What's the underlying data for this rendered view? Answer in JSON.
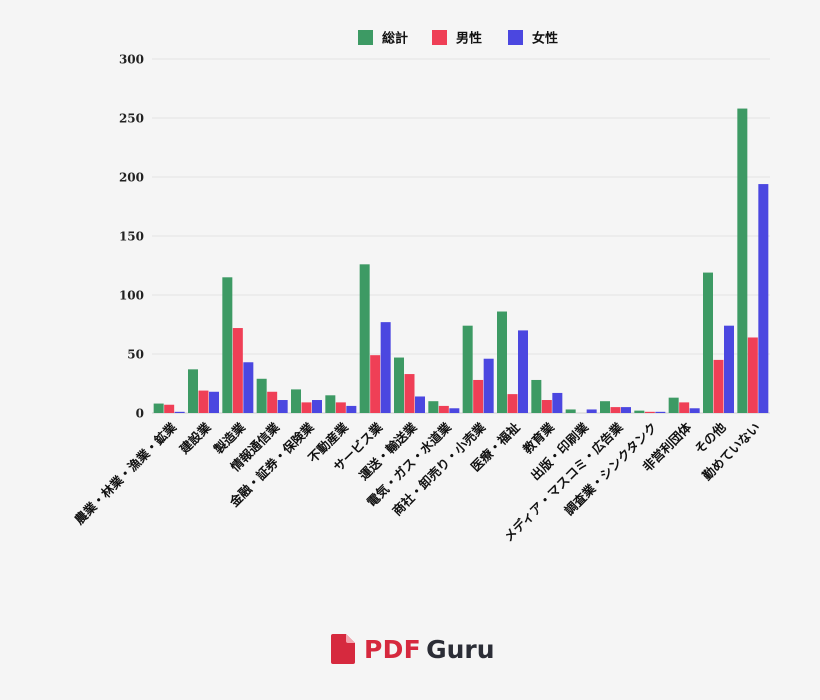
{
  "chart_data": {
    "type": "bar",
    "categories": [
      "農業・林業・漁業・鉱業",
      "建設業",
      "製造業",
      "情報通信業",
      "金融・証券・保険業",
      "不動産業",
      "サービス業",
      "運送・輸送業",
      "電気・ガス・水道業",
      "商社・卸売り・小売業",
      "医療・福祉",
      "教育業",
      "出版・印刷業",
      "メディア・マスコミ・広告業",
      "調査業・シンクタンク",
      "非営利団体",
      "その他",
      "勤めていない"
    ],
    "series": [
      {
        "name": "総計",
        "color": "#3d9a64",
        "values": [
          8,
          37,
          115,
          29,
          20,
          15,
          126,
          47,
          10,
          74,
          86,
          28,
          3,
          10,
          2,
          13,
          119,
          258
        ]
      },
      {
        "name": "男性",
        "color": "#ef3f56",
        "values": [
          7,
          19,
          72,
          18,
          9,
          9,
          49,
          33,
          6,
          28,
          16,
          11,
          0,
          5,
          1,
          9,
          45,
          64
        ]
      },
      {
        "name": "女性",
        "color": "#4b47e0",
        "values": [
          1,
          18,
          43,
          11,
          11,
          6,
          77,
          14,
          4,
          46,
          70,
          17,
          3,
          5,
          1,
          4,
          74,
          194
        ]
      }
    ],
    "yticks": [
      0,
      50,
      100,
      150,
      200,
      250,
      300
    ],
    "ylim": [
      0,
      300
    ],
    "grid": true,
    "legend": "top-center"
  },
  "branding": {
    "logo_icon": "pdf-file-icon",
    "logo_pdf": "PDF",
    "logo_guru": "Guru"
  }
}
